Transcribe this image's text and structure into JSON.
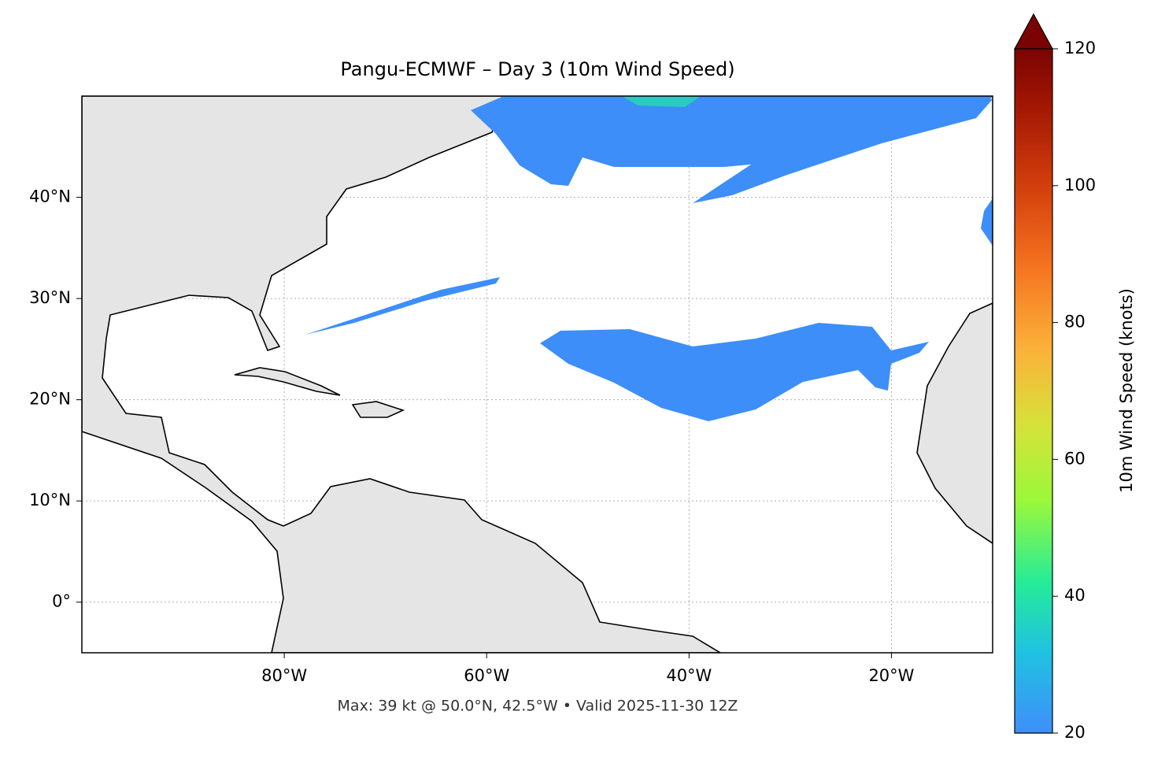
{
  "chart_data": {
    "type": "map",
    "title": "Pangu-ECMWF – Day 3 (10m Wind Speed)",
    "footnote": "Max: 39 kt @ 50.0°N, 42.5°W • Valid 2025-11-30 12Z",
    "xlim": [
      -100,
      -10
    ],
    "ylim": [
      -5,
      50
    ],
    "xticks": [
      {
        "value": -80,
        "label": "80°W"
      },
      {
        "value": -60,
        "label": "60°W"
      },
      {
        "value": -40,
        "label": "40°W"
      },
      {
        "value": -20,
        "label": "20°W"
      }
    ],
    "yticks": [
      {
        "value": 0,
        "label": "0°"
      },
      {
        "value": 10,
        "label": "10°N"
      },
      {
        "value": 20,
        "label": "20°N"
      },
      {
        "value": 30,
        "label": "30°N"
      },
      {
        "value": 40,
        "label": "40°N"
      }
    ],
    "grid": true,
    "colorbar": {
      "label": "10m Wind Speed (knots)",
      "lim": [
        20,
        120
      ],
      "ticks": [
        20,
        40,
        60,
        80,
        100,
        120
      ],
      "extend": "max"
    }
  }
}
